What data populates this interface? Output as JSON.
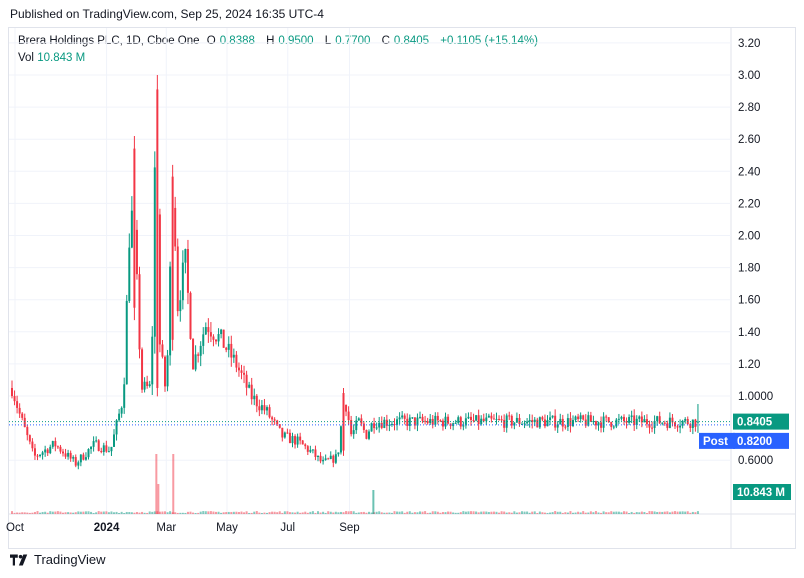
{
  "header": {
    "published": "Published on TradingView.com, Sep 25, 2024 16:35 UTC-4"
  },
  "legend": {
    "title": "Brera Holdings PLC, 1D, Cboe One",
    "o_label": "O",
    "o_value": "0.8388",
    "h_label": "H",
    "h_value": "0.9500",
    "l_label": "L",
    "l_value": "0.7700",
    "c_label": "C",
    "c_value": "0.8405",
    "change": "+0.1105 (+15.14%)",
    "vol_label": "Vol",
    "vol_value": "10.843 M"
  },
  "colors": {
    "up": "#089981",
    "down": "#f23645",
    "post": "#2962ff",
    "grid": "#f0f3fa",
    "text": "#131722"
  },
  "price_badges": {
    "last": "0.8405",
    "post_label": "Post",
    "post_value": "0.8200",
    "volume": "10.843 M"
  },
  "footer": {
    "brand": "TradingView"
  },
  "chart_data": {
    "type": "candlestick",
    "title": "Brera Holdings PLC, 1D, Cboe One",
    "yaxis": {
      "ticks": [
        "3.20",
        "3.00",
        "2.80",
        "2.60",
        "2.40",
        "2.20",
        "2.00",
        "1.80",
        "1.60",
        "1.40",
        "1.20",
        "1.0000",
        "0.8405",
        "0.6000"
      ],
      "range": [
        0.38,
        3.26
      ]
    },
    "xaxis": {
      "ticks": [
        "Oct",
        "2024",
        "Mar",
        "May",
        "Jul",
        "Sep"
      ]
    },
    "last_close": 0.8405,
    "post_market": 0.82,
    "last_volume_millions": 10.843,
    "price_path": [
      {
        "date": "2023-09-28",
        "close": 1.05
      },
      {
        "date": "2023-10-06",
        "close": 0.88
      },
      {
        "date": "2023-10-20",
        "close": 0.62
      },
      {
        "date": "2023-11-10",
        "close": 0.7
      },
      {
        "date": "2023-12-01",
        "close": 0.58
      },
      {
        "date": "2023-12-20",
        "close": 0.7
      },
      {
        "date": "2024-01-05",
        "close": 0.66
      },
      {
        "date": "2024-01-18",
        "close": 1.0
      },
      {
        "date": "2024-01-25",
        "close": 2.2
      },
      {
        "date": "2024-01-30",
        "close": 1.9
      },
      {
        "date": "2024-02-05",
        "close": 1.05
      },
      {
        "date": "2024-02-15",
        "close": 1.05
      },
      {
        "date": "2024-02-20",
        "close": 3.0
      },
      {
        "date": "2024-02-22",
        "close": 1.4
      },
      {
        "date": "2024-03-01",
        "close": 1.0
      },
      {
        "date": "2024-03-08",
        "close": 2.4
      },
      {
        "date": "2024-03-12",
        "close": 1.55
      },
      {
        "date": "2024-03-20",
        "close": 1.85
      },
      {
        "date": "2024-03-28",
        "close": 1.2
      },
      {
        "date": "2024-04-10",
        "close": 1.45
      },
      {
        "date": "2024-04-25",
        "close": 1.35
      },
      {
        "date": "2024-05-10",
        "close": 1.2
      },
      {
        "date": "2024-05-25",
        "close": 1.0
      },
      {
        "date": "2024-06-10",
        "close": 0.9
      },
      {
        "date": "2024-06-25",
        "close": 0.75
      },
      {
        "date": "2024-07-10",
        "close": 0.72
      },
      {
        "date": "2024-07-25",
        "close": 0.65
      },
      {
        "date": "2024-08-05",
        "close": 0.58
      },
      {
        "date": "2024-08-20",
        "close": 0.62
      },
      {
        "date": "2024-08-27",
        "close": 1.0
      },
      {
        "date": "2024-09-03",
        "close": 0.75
      },
      {
        "date": "2024-09-10",
        "close": 0.84
      },
      {
        "date": "2024-09-18",
        "close": 0.76
      },
      {
        "date": "2024-09-25",
        "close": 0.8405
      }
    ]
  }
}
